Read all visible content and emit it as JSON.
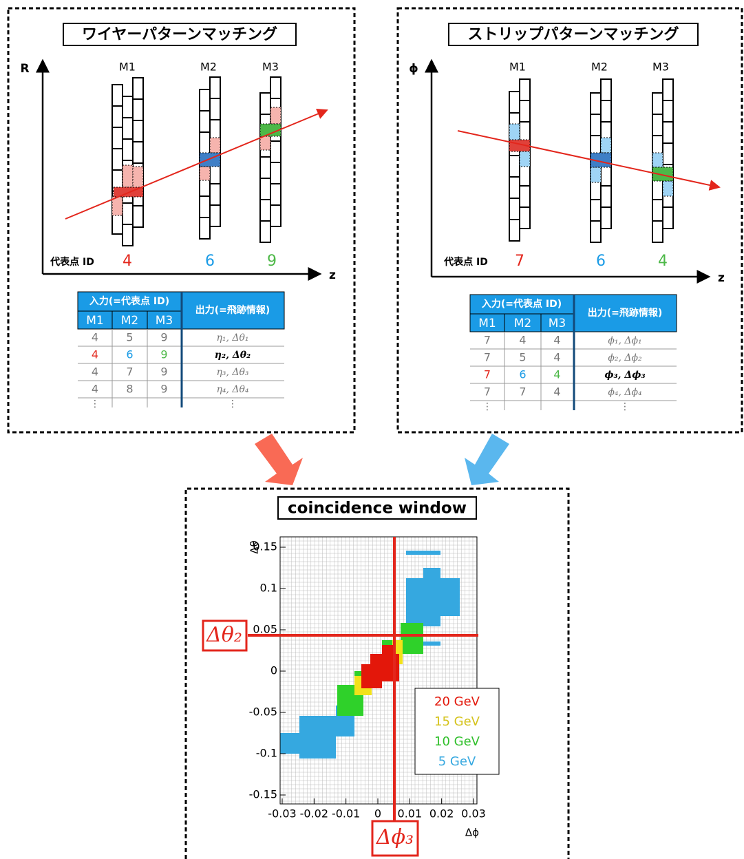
{
  "wire_panel": {
    "title": "ワイヤーパターンマッチング",
    "y_axis": "R",
    "x_axis": "z",
    "layers": [
      "M1",
      "M2",
      "M3"
    ],
    "id_label": "代表点 ID",
    "ids": [
      "4",
      "6",
      "9"
    ],
    "table": {
      "input_header": "入力(=代表点 ID)",
      "output_header": "出力(=飛跡情報)",
      "columns": [
        "M1",
        "M2",
        "M3"
      ],
      "rows": [
        [
          "4",
          "5",
          "9",
          "η₁, Δθ₁"
        ],
        [
          "4",
          "6",
          "9",
          "η₂, Δθ₂"
        ],
        [
          "4",
          "7",
          "9",
          "η₃, Δθ₃"
        ],
        [
          "4",
          "8",
          "9",
          "η₄, Δθ₄"
        ]
      ],
      "ellipsis": "⋮"
    }
  },
  "strip_panel": {
    "title": "ストリップパターンマッチング",
    "y_axis": "ϕ",
    "x_axis": "z",
    "layers": [
      "M1",
      "M2",
      "M3"
    ],
    "id_label": "代表点 ID",
    "ids": [
      "7",
      "6",
      "4"
    ],
    "table": {
      "input_header": "入力(=代表点 ID)",
      "output_header": "出力(=飛跡情報)",
      "columns": [
        "M1",
        "M2",
        "M3"
      ],
      "rows": [
        [
          "7",
          "4",
          "4",
          "ϕ₁, Δϕ₁"
        ],
        [
          "7",
          "5",
          "4",
          "ϕ₂, Δϕ₂"
        ],
        [
          "7",
          "6",
          "4",
          "ϕ₃, Δϕ₃"
        ],
        [
          "7",
          "7",
          "4",
          "ϕ₄, Δϕ₄"
        ]
      ],
      "ellipsis": "⋮"
    }
  },
  "window": {
    "title": "coincidence window",
    "y_axis": "Δθ",
    "x_axis": "Δϕ",
    "xticks": [
      -0.03,
      -0.02,
      -0.01,
      0,
      0.01,
      0.02,
      0.03
    ],
    "yticks": [
      0.15,
      0.1,
      0.05,
      0,
      -0.05,
      -0.1,
      -0.15
    ],
    "legend": [
      "20 GeV",
      "15 GeV",
      "10 GeV",
      "5 GeV"
    ],
    "theta_marker": "Δθ₂",
    "phi_marker": "Δϕ₃"
  }
}
